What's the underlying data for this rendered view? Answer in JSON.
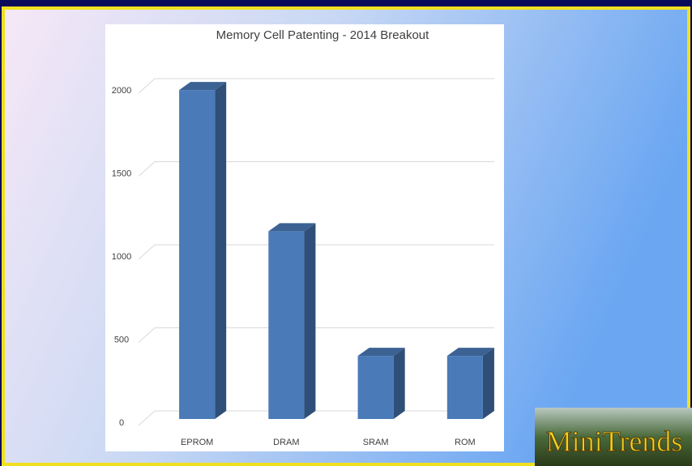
{
  "chart_data": {
    "type": "bar3d",
    "title": "Memory Cell Patenting - 2014 Breakout",
    "categories": [
      "EPROM",
      "DRAM",
      "SRAM",
      "ROM"
    ],
    "values": [
      1980,
      1130,
      380,
      380
    ],
    "color": "#4a7ab8",
    "ylim": [
      0,
      2000
    ],
    "yticks": [
      0,
      500,
      1000,
      1500,
      2000
    ],
    "grid": true
  },
  "logo": "MiniTrends"
}
